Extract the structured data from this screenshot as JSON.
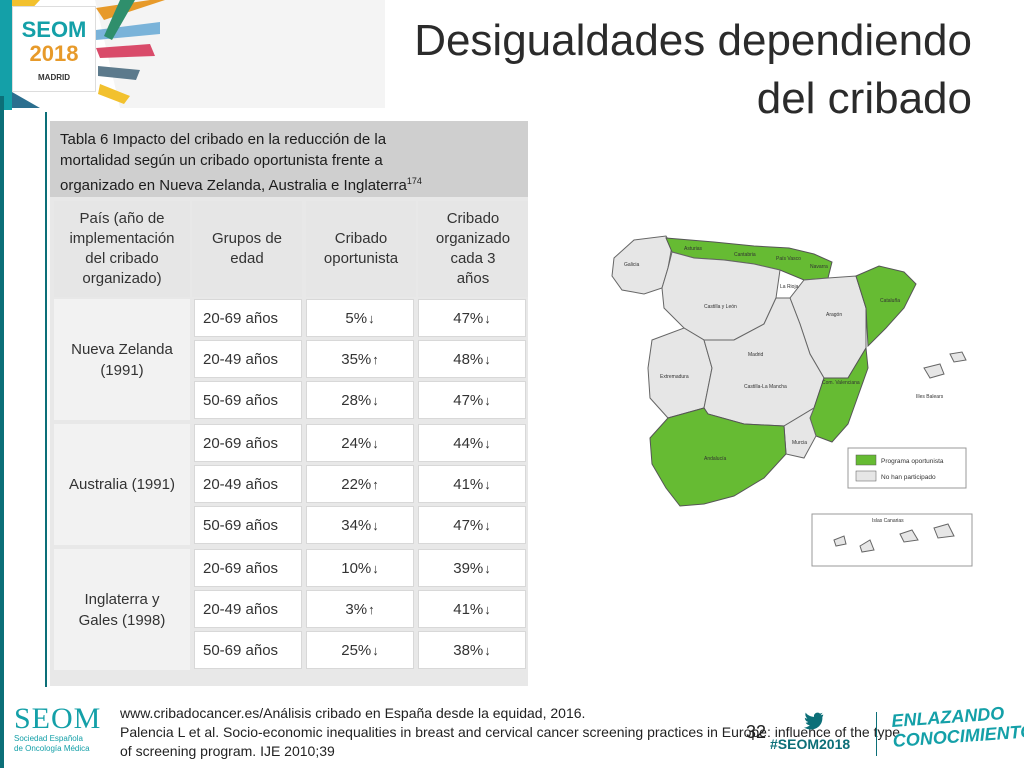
{
  "header": {
    "logo": {
      "brand": "SEOM",
      "year": "2018",
      "city": "MADRID"
    },
    "title_line1": "Desigualdades dependiendo",
    "title_line2": "del cribado"
  },
  "table": {
    "caption_line1": "Tabla 6 Impacto del cribado en la reducción de la",
    "caption_line2": "mortalidad según un cribado oportunista frente a",
    "caption_line3": "organizado en Nueva Zelanda, Australia e Inglaterra",
    "caption_sup": "174",
    "headers": {
      "country": [
        "País (año de",
        "implementación",
        "del cribado",
        "organizado)"
      ],
      "age": [
        "Grupos de",
        "edad"
      ],
      "opportunistic": [
        "Cribado",
        "oportunista"
      ],
      "organized": [
        "Cribado",
        "organizado",
        "cada 3",
        "años"
      ]
    },
    "groups": [
      {
        "country": [
          "Nueva Zelanda",
          "(1991)"
        ],
        "rows": [
          {
            "age": "20-69 años",
            "opp": "5%",
            "opp_dir": "down",
            "org": "47%",
            "org_dir": "down"
          },
          {
            "age": "20-49 años",
            "opp": "35%",
            "opp_dir": "up",
            "org": "48%",
            "org_dir": "down"
          },
          {
            "age": "50-69 años",
            "opp": "28%",
            "opp_dir": "down",
            "org": "47%",
            "org_dir": "down"
          }
        ]
      },
      {
        "country": [
          "Australia (1991)"
        ],
        "rows": [
          {
            "age": "20-69 años",
            "opp": "24%",
            "opp_dir": "down",
            "org": "44%",
            "org_dir": "down"
          },
          {
            "age": "20-49 años",
            "opp": "22%",
            "opp_dir": "up",
            "org": "41%",
            "org_dir": "down"
          },
          {
            "age": "50-69 años",
            "opp": "34%",
            "opp_dir": "down",
            "org": "47%",
            "org_dir": "down"
          }
        ]
      },
      {
        "country": [
          "Inglaterra y",
          "Gales (1998)"
        ],
        "rows": [
          {
            "age": "20-69 años",
            "opp": "10%",
            "opp_dir": "down",
            "org": "39%",
            "org_dir": "down"
          },
          {
            "age": "20-49 años",
            "opp": "3%",
            "opp_dir": "up",
            "org": "41%",
            "org_dir": "down"
          },
          {
            "age": "50-69 años",
            "opp": "25%",
            "opp_dir": "down",
            "org": "38%",
            "org_dir": "down"
          }
        ]
      }
    ]
  },
  "map": {
    "regions": {
      "galicia": "Galicia",
      "asturias": "Asturias",
      "cantabria": "Cantabria",
      "pais_vasco": "País Vasco",
      "navarra": "Navarra",
      "la_rioja": "La Rioja",
      "castilla_leon": "Castilla y León",
      "aragon": "Aragón",
      "cataluna": "Cataluña",
      "madrid": "Madrid",
      "extremadura": "Extremadura",
      "castilla_mancha": "Castilla-La Mancha",
      "valencia": "Com. Valenciana",
      "baleares": "Illes Balears",
      "andalucia": "Andalucía",
      "murcia": "Murcia",
      "canarias": "Islas Canarias"
    },
    "legend": {
      "opportunistic": "Programa oportunista",
      "not_participated": "No han participado"
    },
    "colors": {
      "green": "#66bb33",
      "grey": "#e6e6e6",
      "teal": "#0c6f78",
      "orange": "#e79a2a"
    }
  },
  "footer": {
    "seom": "SEOM",
    "seom_sub1": "Sociedad Española",
    "seom_sub2": "de Oncología Médica",
    "ref1": "www.cribadocancer.es/Análisis cribado en España desde la equidad, 2016.",
    "ref2": "Palencia L et al. Socio-economic inequalities in breast and cervical cancer screening practices in Europe: influence of the type",
    "ref3": "of screening program. IJE 2010;39",
    "page_number": "32",
    "hashtag": "#SEOM2018",
    "slogan1": "ENLAZANDO",
    "slogan2": "CONOCIMIENTO"
  }
}
